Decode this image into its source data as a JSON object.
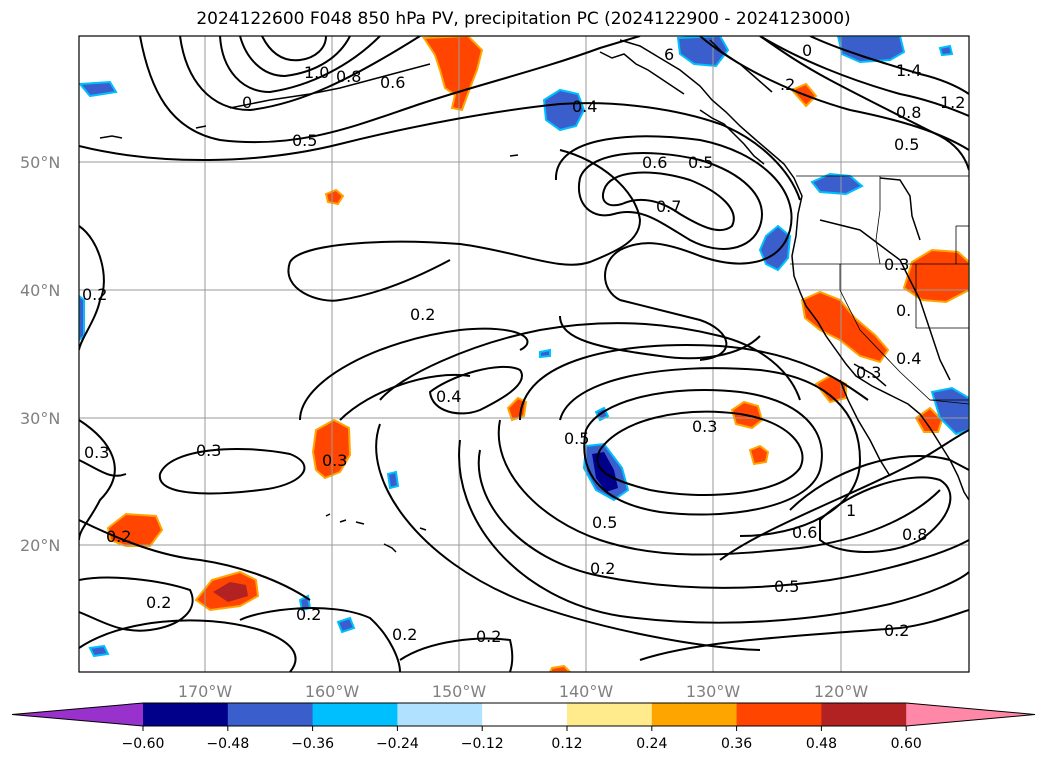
{
  "title": "2024122600 F048 850 hPa PV, precipitation PC (2024122900 - 2024123000)",
  "lat_labels": [
    "50°N",
    "40°N",
    "30°N",
    "20°N"
  ],
  "lon_labels": [
    "170°W",
    "160°W",
    "150°W",
    "140°W",
    "130°W",
    "120°W"
  ],
  "colorbar": {
    "colors": [
      "#9932cc",
      "#00008b",
      "#3a5fcd",
      "#00bfff",
      "#b0e2ff",
      "#ffffff",
      "#ffeb8c",
      "#ffa500",
      "#ff4500",
      "#b22222",
      "#ff88a8"
    ],
    "ticks": [
      "−0.60",
      "−0.48",
      "−0.36",
      "−0.24",
      "−0.12",
      "0.12",
      "0.24",
      "0.36",
      "0.48",
      "0.60"
    ]
  },
  "contour_labels": {
    "c10": "1.0",
    "c08a": "0.8",
    "c06a": "0.6",
    "c0a": "0",
    "c05a": "0.5",
    "c04a": "0.4",
    "c06b": "0.6",
    "c05b": "0.5",
    "c07": "0.7",
    "c6top": "6",
    "c0top": "0",
    "c02top": ".2",
    "c14": "1.4",
    "c08b": "0.8",
    "c12": "1.2",
    "c05c": "0.5",
    "c02a": "0.2",
    "c02b": "0.2",
    "c03a": "0.3",
    "c03e": "0.3",
    "c03b": "0.3",
    "c02c": "0.2",
    "c04b": "0.4",
    "c05d": "0.5",
    "c03c": "0.3",
    "c02d": "0.2",
    "c02e": "0.2",
    "c05e": "0.5",
    "c03d": "0.3",
    "c06c": "0.6",
    "c08c": "0.8",
    "c05f": "0.5",
    "c02f": "0.2",
    "c02g": "0.2",
    "c02h": "0.2",
    "c03f": "0.3",
    "c0b": "0.",
    "c04c": "0.4",
    "c1": "1"
  }
}
